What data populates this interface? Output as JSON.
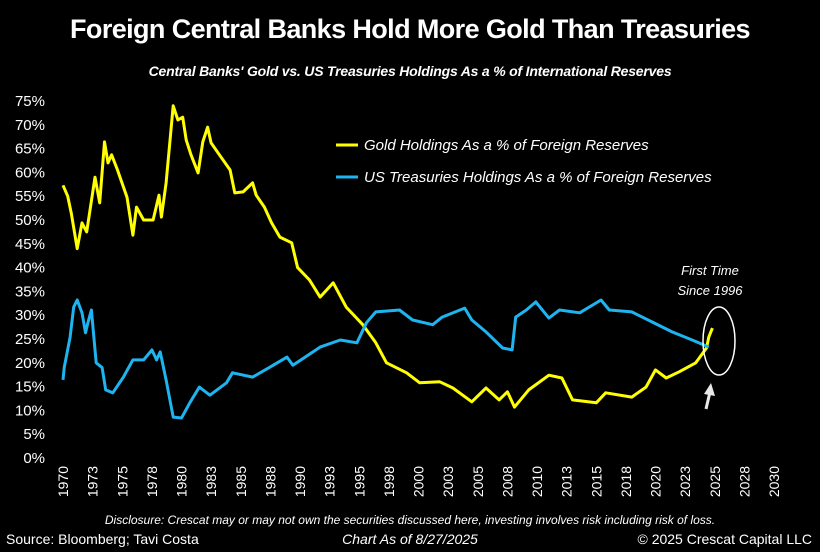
{
  "chart_data": {
    "type": "line",
    "title": "Foreign Central Banks Hold More Gold Than Treasuries",
    "subtitle": "Central Banks' Gold vs. US Treasuries Holdings As a % of International Reserves",
    "xlabel": "",
    "ylabel": "",
    "xlim": [
      1970,
      2030
    ],
    "ylim": [
      0,
      75
    ],
    "x_ticks": [
      "1970",
      "1973",
      "1975",
      "1978",
      "1980",
      "1983",
      "1985",
      "1988",
      "1990",
      "1993",
      "1995",
      "1998",
      "2000",
      "2003",
      "2005",
      "2008",
      "2010",
      "2013",
      "2015",
      "2018",
      "2020",
      "2023",
      "2025",
      "2028",
      "2030"
    ],
    "y_ticks": [
      "0%",
      "5%",
      "10%",
      "15%",
      "20%",
      "25%",
      "30%",
      "35%",
      "40%",
      "45%",
      "50%",
      "55%",
      "60%",
      "65%",
      "70%",
      "75%"
    ],
    "grid": false,
    "legend_placement": "top-center",
    "series": [
      {
        "name": "Gold Holdings As a % of Foreign Reserves",
        "color": "#FFFF00",
        "points": [
          [
            1970.0,
            57.3
          ],
          [
            1970.4,
            55
          ],
          [
            1970.7,
            51.4
          ],
          [
            1971.2,
            44
          ],
          [
            1971.6,
            49.4
          ],
          [
            1972.0,
            47.5
          ],
          [
            1972.7,
            59
          ],
          [
            1973.1,
            53.6
          ],
          [
            1973.5,
            66.4
          ],
          [
            1973.8,
            62
          ],
          [
            1974.1,
            63.7
          ],
          [
            1974.6,
            60.5
          ],
          [
            1975.4,
            54.8
          ],
          [
            1975.9,
            46.8
          ],
          [
            1976.2,
            52.7
          ],
          [
            1976.8,
            50
          ],
          [
            1977.6,
            50
          ],
          [
            1978.1,
            55.2
          ],
          [
            1978.3,
            50.6
          ],
          [
            1978.7,
            57.8
          ],
          [
            1979.3,
            74
          ],
          [
            1979.7,
            71
          ],
          [
            1980.1,
            71.6
          ],
          [
            1980.4,
            66.8
          ],
          [
            1980.8,
            63.7
          ],
          [
            1981.4,
            59.9
          ],
          [
            1981.8,
            66.4
          ],
          [
            1982.2,
            69.5
          ],
          [
            1982.5,
            66.2
          ],
          [
            1983.2,
            63.7
          ],
          [
            1984.1,
            60.5
          ],
          [
            1984.5,
            55.7
          ],
          [
            1985.2,
            55.9
          ],
          [
            1986.0,
            57.8
          ],
          [
            1986.3,
            55.2
          ],
          [
            1987.0,
            52.7
          ],
          [
            1987.6,
            49.4
          ],
          [
            1988.3,
            46.4
          ],
          [
            1989.3,
            45.2
          ],
          [
            1989.8,
            40
          ],
          [
            1990.8,
            37.4
          ],
          [
            1991.7,
            33.8
          ],
          [
            1992.8,
            36.8
          ],
          [
            1993.9,
            31.7
          ],
          [
            1995.3,
            28
          ],
          [
            1996.4,
            24.2
          ],
          [
            1997.3,
            20
          ],
          [
            1999.0,
            17.9
          ],
          [
            2000.1,
            15.8
          ],
          [
            2001.8,
            16
          ],
          [
            2002.9,
            14.7
          ],
          [
            2004.5,
            11.8
          ],
          [
            2005.7,
            14.7
          ],
          [
            2006.8,
            12.2
          ],
          [
            2007.5,
            13.9
          ],
          [
            2008.1,
            10.7
          ],
          [
            2009.3,
            14.3
          ],
          [
            2011.0,
            17.4
          ],
          [
            2012.1,
            16.8
          ],
          [
            2013.0,
            12.2
          ],
          [
            2015.0,
            11.6
          ],
          [
            2015.8,
            13.7
          ],
          [
            2018.0,
            12.8
          ],
          [
            2019.2,
            14.9
          ],
          [
            2020.0,
            18.5
          ],
          [
            2020.9,
            16.8
          ],
          [
            2022.0,
            18.1
          ],
          [
            2023.4,
            20
          ],
          [
            2024.3,
            23.1
          ],
          [
            2024.5,
            25.4
          ],
          [
            2024.8,
            27.3
          ]
        ]
      },
      {
        "name": "US Treasuries Holdings As a % of Foreign Reserves",
        "color": "#1EB4F0",
        "points": [
          [
            1970.0,
            16.4
          ],
          [
            1970.1,
            19
          ],
          [
            1970.6,
            25.4
          ],
          [
            1970.9,
            31.7
          ],
          [
            1971.2,
            33.2
          ],
          [
            1971.6,
            30.5
          ],
          [
            1971.9,
            26.3
          ],
          [
            1972.1,
            28.4
          ],
          [
            1972.4,
            31.1
          ],
          [
            1972.8,
            20
          ],
          [
            1973.3,
            19
          ],
          [
            1973.6,
            14.3
          ],
          [
            1974.2,
            13.7
          ],
          [
            1975.1,
            17
          ],
          [
            1975.9,
            20.6
          ],
          [
            1976.8,
            20.6
          ],
          [
            1977.5,
            22.7
          ],
          [
            1977.9,
            20.6
          ],
          [
            1978.2,
            22.3
          ],
          [
            1978.7,
            16.4
          ],
          [
            1979.3,
            8.6
          ],
          [
            1980.0,
            8.4
          ],
          [
            1980.7,
            11.6
          ],
          [
            1981.5,
            14.9
          ],
          [
            1982.4,
            13.2
          ],
          [
            1983.8,
            15.8
          ],
          [
            1984.3,
            17.9
          ],
          [
            1986.0,
            17
          ],
          [
            1987.4,
            19
          ],
          [
            1988.9,
            21.2
          ],
          [
            1989.4,
            19.5
          ],
          [
            1991.7,
            23.3
          ],
          [
            1993.4,
            24.8
          ],
          [
            1994.8,
            24.2
          ],
          [
            1995.6,
            28.4
          ],
          [
            1996.4,
            30.7
          ],
          [
            1998.4,
            31.1
          ],
          [
            1999.5,
            29
          ],
          [
            2001.2,
            28
          ],
          [
            2002.0,
            29.6
          ],
          [
            2003.9,
            31.5
          ],
          [
            2004.5,
            29
          ],
          [
            2005.7,
            26.5
          ],
          [
            2007.1,
            23.1
          ],
          [
            2007.9,
            22.7
          ],
          [
            2008.2,
            29.6
          ],
          [
            2009.1,
            31.1
          ],
          [
            2009.9,
            32.8
          ],
          [
            2011.0,
            29.4
          ],
          [
            2011.9,
            31.1
          ],
          [
            2013.6,
            30.5
          ],
          [
            2015.4,
            33.2
          ],
          [
            2016.1,
            31.1
          ],
          [
            2018.0,
            30.7
          ],
          [
            2019.7,
            28.6
          ],
          [
            2021.4,
            26.5
          ],
          [
            2023.1,
            24.8
          ],
          [
            2024.5,
            23.3
          ]
        ]
      }
    ],
    "annotations": [
      "First Time",
      "Since 1996"
    ]
  },
  "footer": {
    "disclosure": "Disclosure: Crescat may or may not own the securities discussed here, investing involves risk including risk of loss.",
    "source": "Source: Bloomberg; Tavi Costa",
    "as_of": "Chart As of 8/27/2025",
    "copyright": "© 2025 Crescat Capital LLC"
  }
}
